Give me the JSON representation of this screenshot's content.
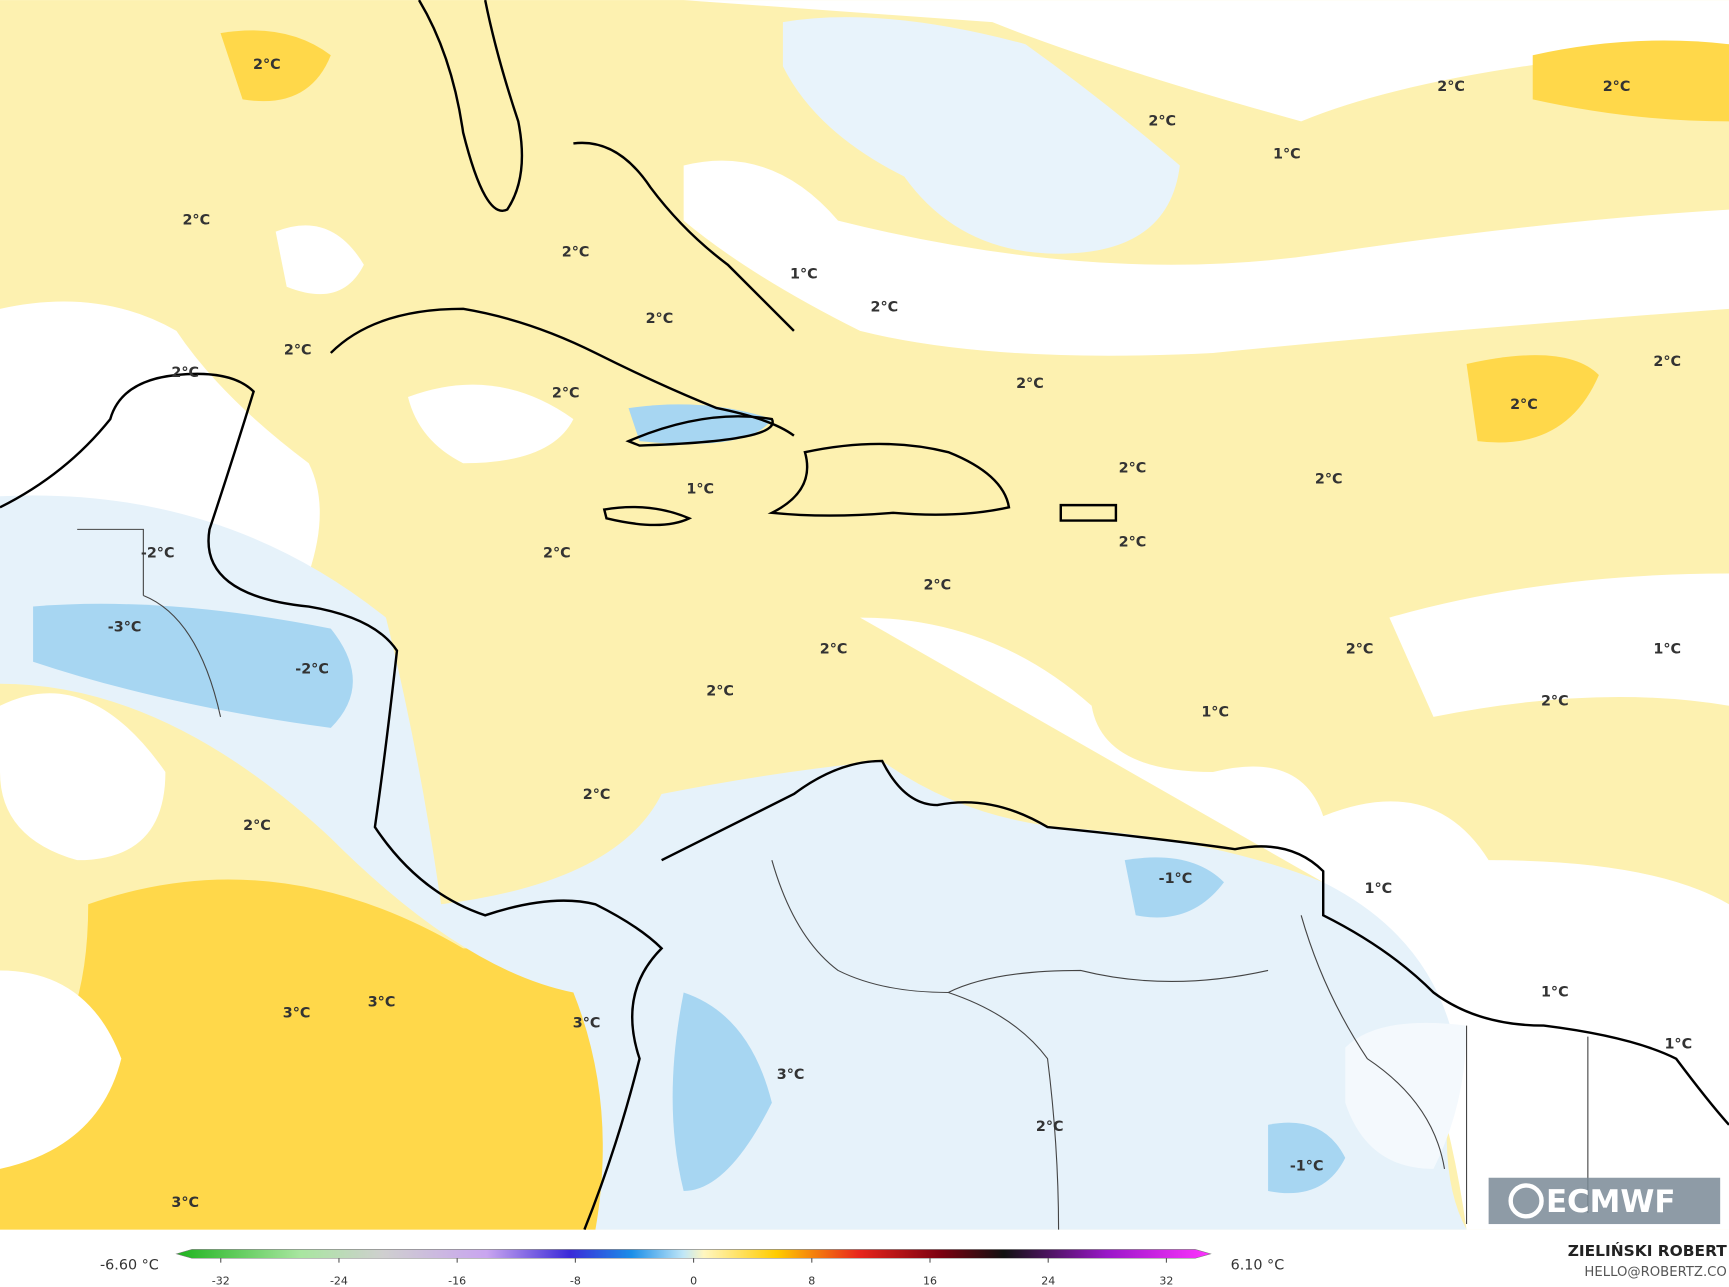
{
  "map": {
    "labels": [
      "2°C",
      "2°C",
      "2°C",
      "2°C",
      "1°C",
      "2°C",
      "2°C",
      "1°C",
      "2°C",
      "2°C",
      "2°C",
      "2°C",
      "2°C",
      "2°C",
      "2°C",
      "2°C",
      "2°C",
      "2°C",
      "1°C",
      "2°C",
      "2°C",
      "-2°C",
      "2°C",
      "-3°C",
      "-2°C",
      "2°C",
      "2°C",
      "1°C",
      "2°C",
      "2°C",
      "1°C",
      "2°C",
      "2°C",
      "-1°C",
      "1°C",
      "3°C",
      "3°C",
      "3°C",
      "1°C",
      "1°C",
      "3°C",
      "2°C",
      "-1°C",
      "3°C"
    ]
  },
  "colorbar": {
    "lim": [
      -35,
      35
    ],
    "ticks": [
      -32,
      -24,
      -16,
      -8,
      0,
      8,
      16,
      24,
      32
    ],
    "min_label": "-6.60 °C",
    "max_label": "6.10 °C"
  },
  "credit": {
    "name": "ZIELIŃSKI ROBERT",
    "email": "HELLO@ROBERTZ.CO"
  },
  "logo": "ECMWF"
}
